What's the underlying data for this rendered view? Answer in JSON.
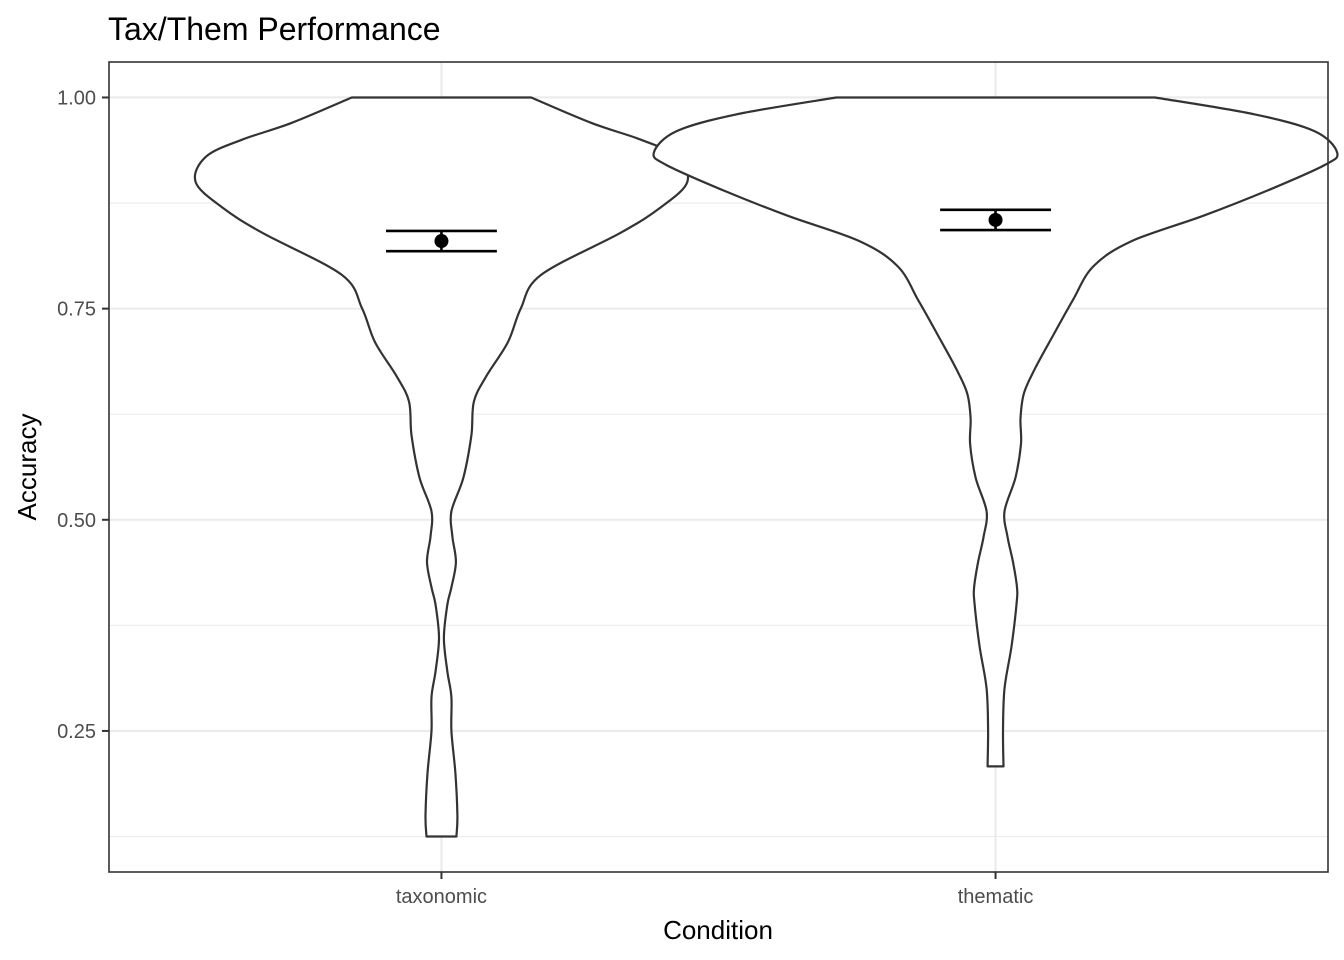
{
  "chart_data": {
    "type": "violin",
    "title": "Tax/Them Performance",
    "xlabel": "Condition",
    "ylabel": "Accuracy",
    "categories": [
      "taxonomic",
      "thematic"
    ],
    "ylim": [
      0.083,
      1.042
    ],
    "y_ticks": [
      {
        "value": 0.25,
        "label": "0.25"
      },
      {
        "value": 0.5,
        "label": "0.50"
      },
      {
        "value": 0.75,
        "label": "0.75"
      },
      {
        "value": 1.0,
        "label": "1.00"
      }
    ],
    "y_minor_ticks": [
      0.125,
      0.375,
      0.625,
      0.875
    ],
    "grid": true,
    "series": [
      {
        "category": "taxonomic",
        "y_min": 0.125,
        "y_max": 1.0,
        "mean": 0.83,
        "error_bar": [
          0.818,
          0.842
        ],
        "density_halfwidth": [
          [
            0.125,
            0.03
          ],
          [
            0.15,
            0.032
          ],
          [
            0.2,
            0.028
          ],
          [
            0.25,
            0.02
          ],
          [
            0.29,
            0.02
          ],
          [
            0.32,
            0.012
          ],
          [
            0.36,
            0.005
          ],
          [
            0.4,
            0.012
          ],
          [
            0.42,
            0.02
          ],
          [
            0.45,
            0.029
          ],
          [
            0.48,
            0.022
          ],
          [
            0.51,
            0.02
          ],
          [
            0.55,
            0.044
          ],
          [
            0.6,
            0.06
          ],
          [
            0.64,
            0.065
          ],
          [
            0.67,
            0.09
          ],
          [
            0.71,
            0.133
          ],
          [
            0.75,
            0.159
          ],
          [
            0.79,
            0.2
          ],
          [
            0.84,
            0.36
          ],
          [
            0.87,
            0.44
          ],
          [
            0.9,
            0.493
          ],
          [
            0.93,
            0.472
          ],
          [
            0.95,
            0.4
          ],
          [
            0.97,
            0.3
          ],
          [
            1.0,
            0.18
          ]
        ]
      },
      {
        "category": "thematic",
        "y_min": 0.208,
        "y_max": 1.0,
        "mean": 0.855,
        "error_bar": [
          0.843,
          0.867
        ],
        "density_halfwidth": [
          [
            0.208,
            0.016
          ],
          [
            0.25,
            0.015
          ],
          [
            0.3,
            0.018
          ],
          [
            0.35,
            0.032
          ],
          [
            0.4,
            0.042
          ],
          [
            0.42,
            0.043
          ],
          [
            0.45,
            0.035
          ],
          [
            0.48,
            0.024
          ],
          [
            0.51,
            0.018
          ],
          [
            0.55,
            0.04
          ],
          [
            0.59,
            0.051
          ],
          [
            0.62,
            0.05
          ],
          [
            0.65,
            0.057
          ],
          [
            0.68,
            0.08
          ],
          [
            0.72,
            0.117
          ],
          [
            0.76,
            0.155
          ],
          [
            0.8,
            0.196
          ],
          [
            0.83,
            0.273
          ],
          [
            0.86,
            0.417
          ],
          [
            0.89,
            0.546
          ],
          [
            0.92,
            0.66
          ],
          [
            0.935,
            0.685
          ],
          [
            0.96,
            0.64
          ],
          [
            0.98,
            0.52
          ],
          [
            1.0,
            0.32
          ]
        ]
      }
    ]
  }
}
